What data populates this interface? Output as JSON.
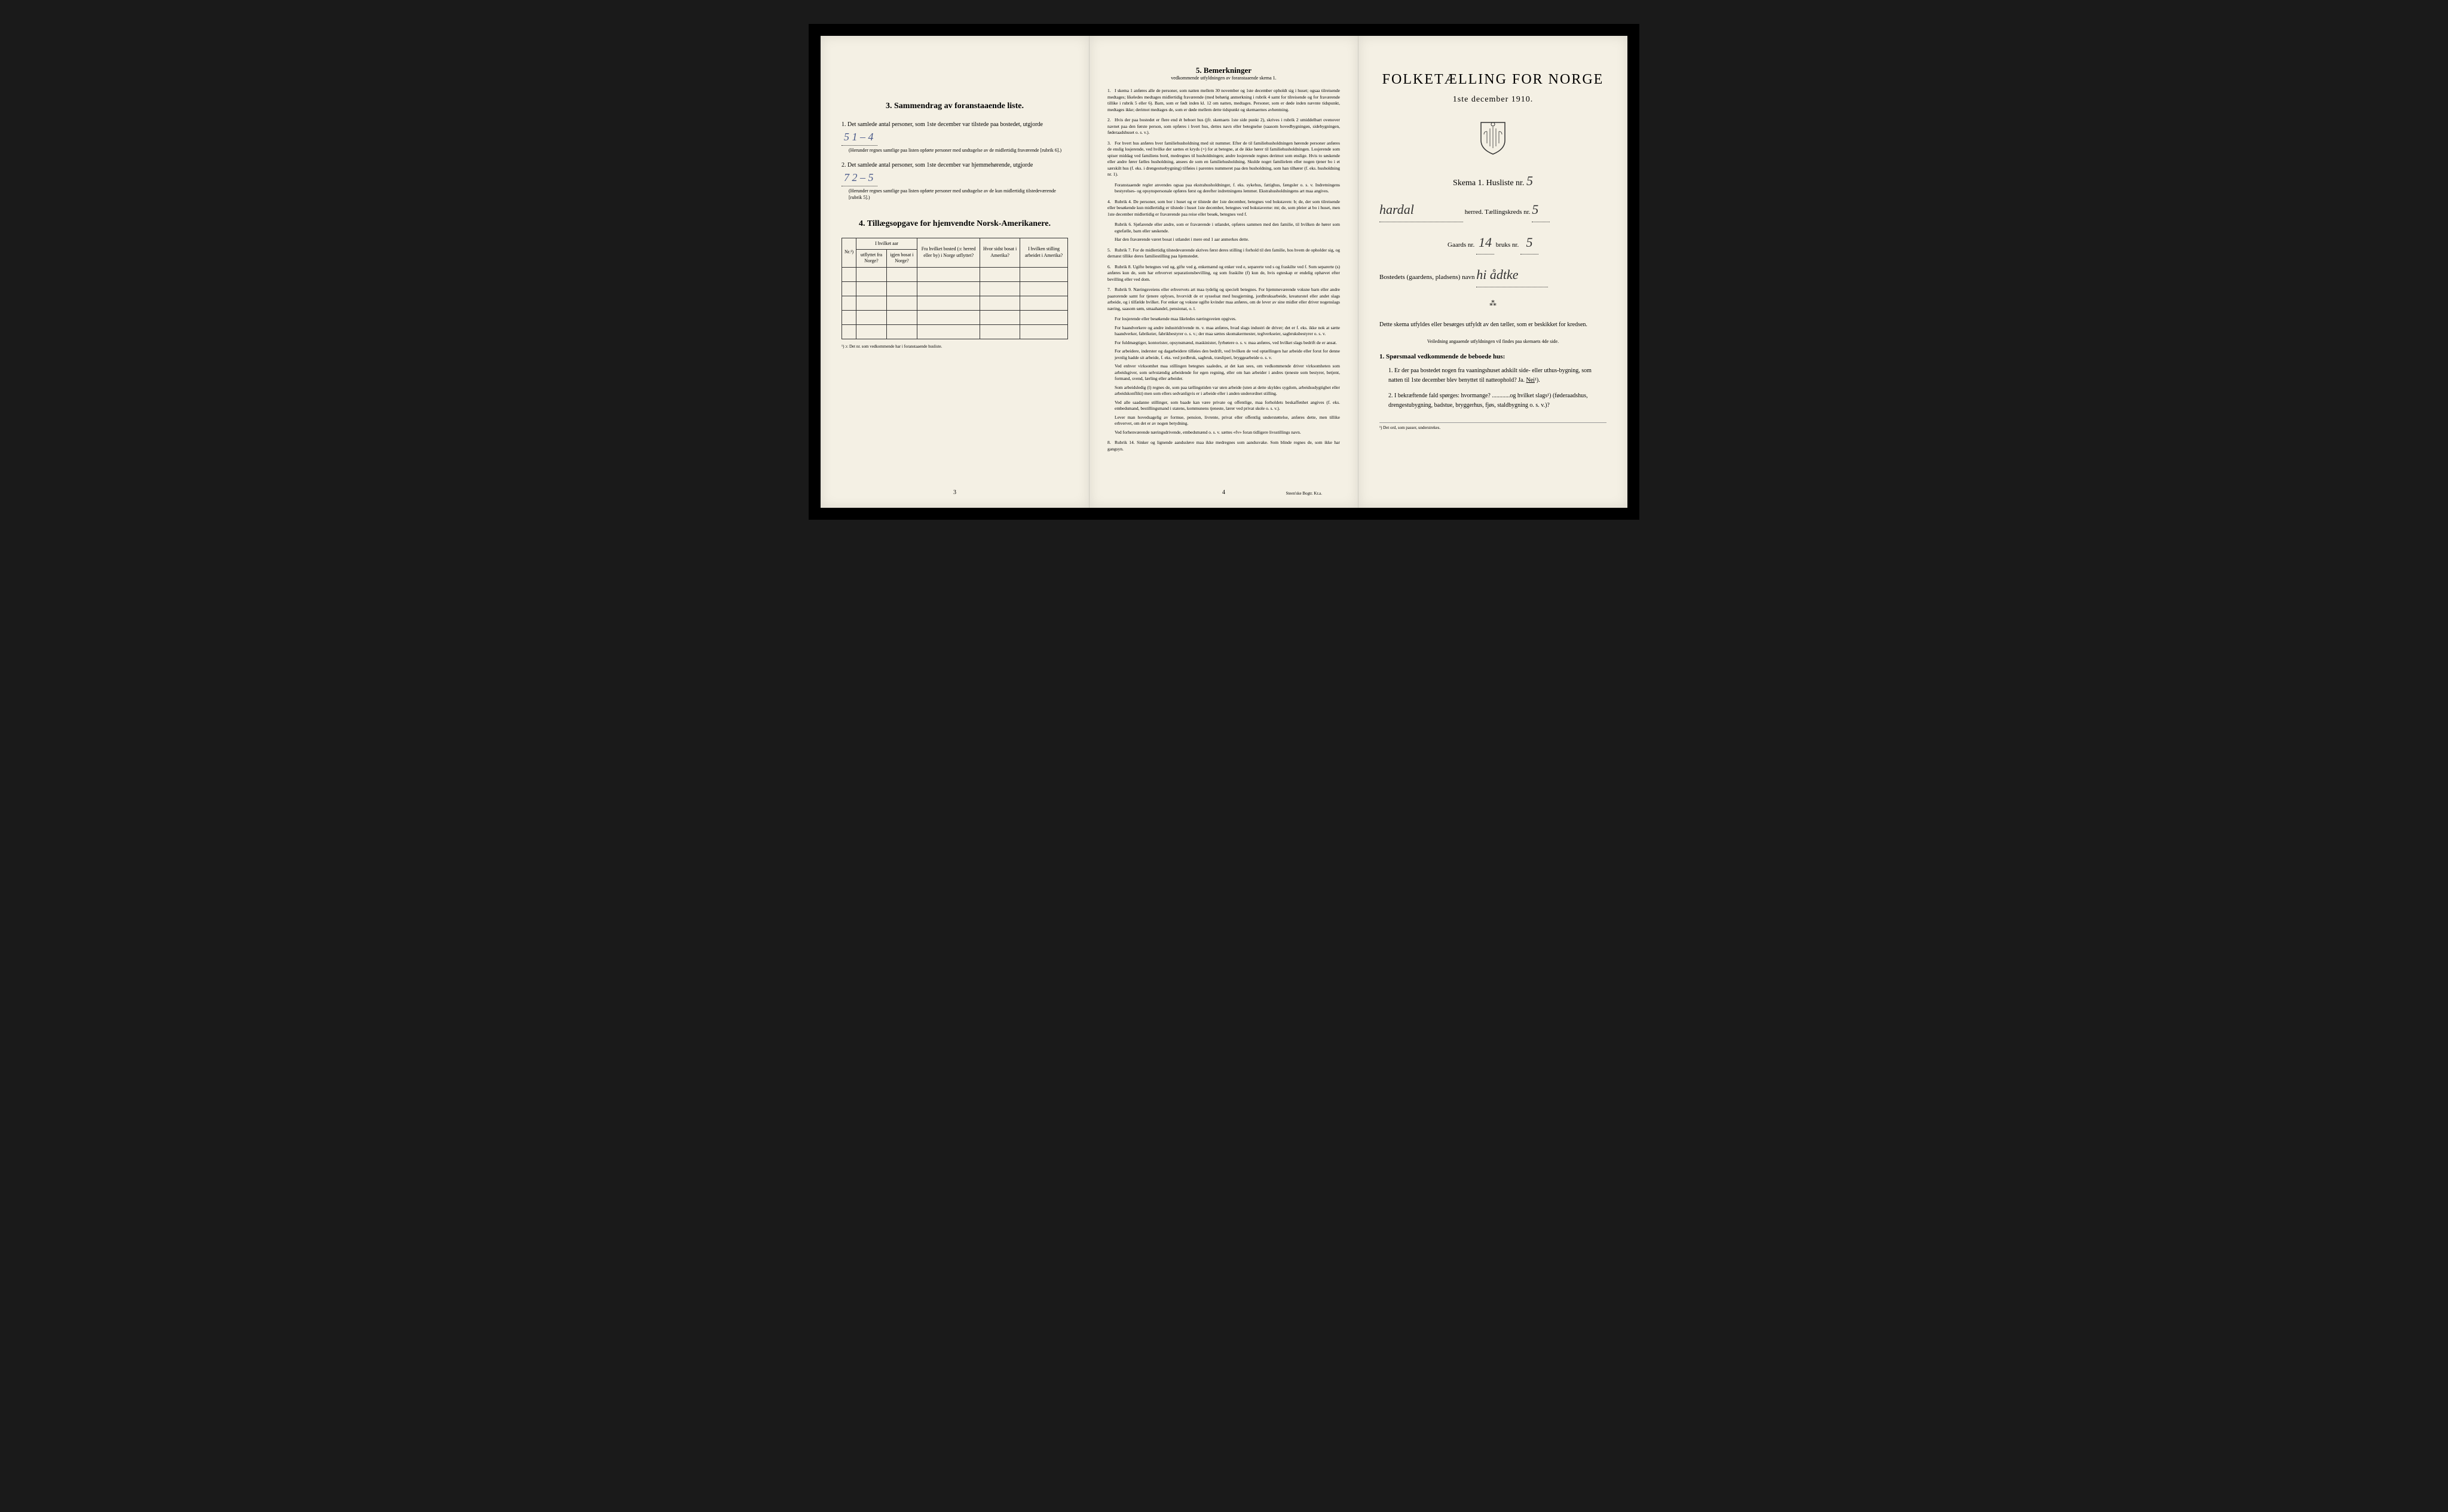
{
  "leftPage": {
    "section3": {
      "title": "3.   Sammendrag av foranstaaende liste.",
      "item1": {
        "text": "Det samlede antal personer, som 1ste december var tilstede paa bostedet, utgjorde",
        "handwritten": "5     1 – 4",
        "note": "(Herunder regnes samtlige paa listen opførte personer med undtagelse av de midlertidig fraværende [rubrik 6].)"
      },
      "item2": {
        "text": "Det samlede antal personer, som 1ste december var hjemmehørende, utgjorde",
        "handwritten": "7     2 – 5",
        "note": "(Herunder regnes samtlige paa listen opførte personer med undtagelse av de kun midlertidig tilstedeværende [rubrik 5].)"
      }
    },
    "section4": {
      "title": "4.   Tillægsopgave for hjemvendte Norsk-Amerikanere.",
      "headers": {
        "col1": "Nr.¹)",
        "col2a": "I hvilket aar",
        "col2b": "utflyttet fra Norge?",
        "col2c": "igjen bosat i Norge?",
        "col3": "Fra hvilket bosted (ɔ: herred eller by) i Norge utflyttet?",
        "col4": "Hvor sidst bosat i Amerika?",
        "col5": "I hvilken stilling arbeidet i Amerika?"
      },
      "footnote": "¹) ɔ: Det nr. som vedkommende har i foranstaaende husliste."
    },
    "pageNum": "3"
  },
  "centerPage": {
    "title": "5.   Bemerkninger",
    "subtitle": "vedkommende utfyldningen av foranstaaende skema 1.",
    "items": [
      {
        "num": "1.",
        "text": "I skema 1 anføres alle de personer, som natten mellem 30 november og 1ste december opholdt sig i huset; ogsaa tilreisende medtages; likeledes medtages midlertidig fraværende (med behørig anmerkning i rubrik 4 samt for tilreisende og for fraværende tillike i rubrik 5 eller 6). Barn, som er født inden kl. 12 om natten, medtages. Personer, som er døde inden nævnte tidspunkt, medtages ikke; derimot medtages de, som er døde mellem dette tidspunkt og skemaernes avhentning."
      },
      {
        "num": "2.",
        "text": "Hvis der paa bostedet er flere end ét beboet hus (jfr. skemaets 1ste side punkt 2), skrives i rubrik 2 umiddelbart ovenover navnet paa den første person, som opføres i hvert hus, dettes navn eller betegnelse (saasom hovedbygningen, sidebygningen, føderaadshuset o. s. v.)."
      },
      {
        "num": "3.",
        "text": "For hvert hus anføres hver familiehusholdning med sit nummer. Efter de til familiehusholdningen hørende personer anføres de enslig losjerende, ved hvilke der sættes et kryds (×) for at betegne, at de ikke hører til familiehusholdningen. Losjerende som spiser middag ved familiens bord, medregnes til husholdningen; andre losjerende regnes derimot som enslige. Hvis to søskende eller andre fører fælles husholdning, ansees de som en familiehusholdning. Skulde noget familielem eller nogen tjener bo i et særskilt hus (f. eks. i drengestuebygning) tilføies i parentes nummeret paa den husholdning, som han tilhører (f. eks. husholdning nr. 1)."
      },
      {
        "num": "",
        "text": "Foranstaaende regler anvendes ogsaa paa ekstrahusholdninger, f. eks. sykehus, fattighus, fængsler o. s. v. Indretningens bestyrelses- og opsynspersonale opføres først og derefter indretningens lemmer. Ekstrahusholdningens art maa angives."
      },
      {
        "num": "4.",
        "text": "Rubrik 4. De personer, som bor i huset og er tilstede der 1ste december, betegnes ved bokstaven: b; de, der som tilreisende eller besøkende kun midlertidig er tilstede i huset 1ste december, betegnes ved bokstaverne: mt; de, som pleier at bo i huset, men 1ste december midlertidig er fraværende paa reise eller besøk, betegnes ved f."
      },
      {
        "num": "",
        "text": "Rubrik 6. Sjøfarende eller andre, som er fraværende i utlandet, opføres sammen med den familie, til hvilken de hører som egtefælle, barn eller søskende."
      },
      {
        "num": "",
        "text": "Har den fraværende været bosat i utlandet i mere end 1 aar anmerkes dette."
      },
      {
        "num": "5.",
        "text": "Rubrik 7. For de midlertidig tilstedeværende skrives først deres stilling i forhold til den familie, hos hvem de opholder sig, og dernæst tillike deres familiestilling paa hjemstedet."
      },
      {
        "num": "6.",
        "text": "Rubrik 8. Ugifte betegnes ved ug, gifte ved g, enkemænd og enker ved e, separerte ved s og fraskilte ved f. Som separerte (s) anføres kun de, som har erhvervet separationsbevilling, og som fraskilte (f) kun de, hvis egteskap er endelig ophævet efter bevilling eller ved dom."
      },
      {
        "num": "7.",
        "text": "Rubrik 9. Næringsveiens eller erhvervets art maa tydelig og specielt betegnes. For hjemmeværende voksne barn eller andre paarorende samt for tjenere oplyses, hvorvidt de er sysselsat med husgjerning, jordbruksarbeide, kreaturstel eller andet slags arbeide, og i tilfælde hvilket. For enker og voksne ugifte kvinder maa anføres, om de lever av sine midler eller driver nogenslags næring, saasom søm, smaahandel, pensionat, o. l."
      },
      {
        "num": "",
        "text": "For losjerende eller besøkende maa likeledes næringsveien opgives."
      },
      {
        "num": "",
        "text": "For haandverkere og andre industridrivende m. v. maa anføres, hvad slags industri de driver; det er f. eks. ikke nok at sætte haandverker, fabrikeier, fabrikbestyrer o. s. v.; der maa sættes skomakermester, teglverkseier, sagbruksbestyrer o. s. v."
      },
      {
        "num": "",
        "text": "For fuldmægtiger, kontorister, opsynsmænd, maskinister, fyrbøtere o. s. v. maa anføres, ved hvilket slags bedrift de er ansat."
      },
      {
        "num": "",
        "text": "For arbeidere, inderster og dagarbeidere tilføies den bedrift, ved hvilken de ved optællingen har arbeide eller forut for denne jevnlig hadde sit arbeide, f. eks. ved jordbruk, sagbruk, træsliperi, bryggearbeide o. s. v."
      },
      {
        "num": "",
        "text": "Ved enhver virksomhet maa stillingen betegnes saaledes, at det kan sees, om vedkommende driver virksomheten som arbeidsgiver, som selvstændig arbeidende for egen regning, eller om han arbeider i andres tjeneste som bestyrer, betjent, formand, svend, lærling eller arbeider."
      },
      {
        "num": "",
        "text": "Som arbeidsledig (l) regnes de, som paa tællingstiden var uten arbeide (uten at dette skyldes sygdom, arbeidsudygtighet eller arbeidskonflikt) men som ellers sedvanligvis er i arbeide eller i anden underordnet stilling."
      },
      {
        "num": "",
        "text": "Ved alle saadanne stillinger, som baade kan være private og offentlige, maa forholdets beskaffenhet angives (f. eks. embedsmand, bestillingsmand i statens, kommunens tjeneste, lærer ved privat skole o. s. v.)."
      },
      {
        "num": "",
        "text": "Lever man hovedsagelig av formue, pension, livrente, privat eller offentlig understøttelse, anføres dette, men tillike erhvervet, om det er av nogen betydning."
      },
      {
        "num": "",
        "text": "Ved forhenværende næringsdrivende, embedsmænd o. s. v. sættes «fv» foran tidligere livsstillings navn."
      },
      {
        "num": "8.",
        "text": "Rubrik 14. Sinker og lignende aandssløve maa ikke medregnes som aandssvake. Som blinde regnes de, som ikke har gangsyn."
      }
    ],
    "pageNum": "4",
    "printer": "Steen'ske Bogtr.  Kr.a."
  },
  "rightPage": {
    "mainTitle": "FOLKETÆLLING FOR NORGE",
    "dateLine": "1ste december 1910.",
    "skemaLine": "Skema 1.   Husliste nr.",
    "huslisteNr": "5",
    "herredLabel": "herred.   Tællingskreds nr.",
    "herredName": "hardal",
    "kredsNr": "5",
    "gaardsLabel": "Gaards nr.",
    "gaardsNr": "14",
    "bruksLabel": "bruks nr.",
    "bruksNr": "5",
    "bostedLabel": "Bostedets (gaardens, pladsens) navn",
    "bostedName": "hi ådtke",
    "instruction": "Dette skema utfyldes eller besørges utfyldt av den tæller, som er beskikket for kredsen.",
    "smallInstruction": "Veiledning angaaende utfyldningen vil findes paa skemaets 4de side.",
    "sporsmaalHeader": "1. Spørsmaal vedkommende de beboede hus:",
    "sporsmaal1": {
      "num": "1.",
      "text": "Er der paa bostedet nogen fra vaaningshuset adskilt side- eller uthus-bygning, som natten til 1ste december blev benyttet til natteophold?   Ja.",
      "answer": "Nei",
      "suffix": "¹)."
    },
    "sporsmaal2": {
      "num": "2.",
      "text": "I bekræftende fald spørges: hvormange? ............og hvilket slags¹) (føderaadshus, drengestubygning, badstue, bryggerhus, fjøs, staldbygning o. s. v.)?"
    },
    "bottomFootnote": "¹) Det ord, som passer, understrekes."
  }
}
